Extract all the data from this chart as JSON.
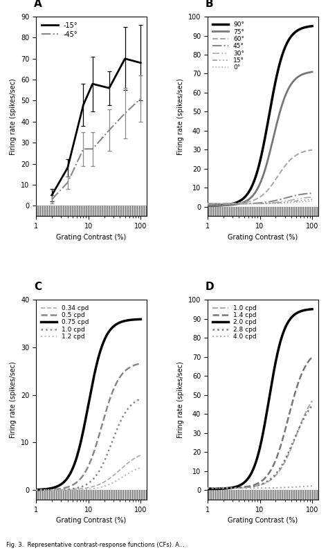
{
  "panel_A": {
    "label": "A",
    "ylabel": "Firing rate (spikes/sec)",
    "xlabel": "Grating Contrast (%)",
    "ylim": [
      -5,
      90
    ],
    "yticks": [
      0,
      10,
      20,
      30,
      40,
      50,
      60,
      70,
      80,
      90
    ],
    "series": [
      {
        "label": "-15°",
        "color": "#000000",
        "linestyle": "-",
        "linewidth": 2.0,
        "x": [
          2,
          4,
          8,
          12,
          25,
          50,
          100
        ],
        "y": [
          5,
          18,
          48,
          58,
          56,
          70,
          68
        ],
        "yerr": [
          3,
          4,
          10,
          13,
          8,
          15,
          18
        ]
      },
      {
        "label": "-45°",
        "color": "#888888",
        "linestyle": "-.",
        "linewidth": 1.5,
        "x": [
          2,
          4,
          8,
          12,
          25,
          50,
          100
        ],
        "y": [
          3,
          11,
          27,
          27,
          36,
          44,
          51
        ],
        "yerr": [
          2,
          3,
          8,
          8,
          10,
          12,
          11
        ]
      }
    ]
  },
  "panel_B": {
    "label": "B",
    "ylabel": "Firing rate (spikes/sec)",
    "xlabel": "Grating Contrast (%)",
    "ylim": [
      -5,
      100
    ],
    "yticks": [
      0,
      10,
      20,
      30,
      40,
      50,
      60,
      70,
      80,
      90,
      100
    ],
    "curves": [
      {
        "label": "90°",
        "Rmax": 95,
        "c50": 15,
        "n": 2.8,
        "baseline": 0.5,
        "color": "#000000",
        "ls": "-",
        "lw": 2.5
      },
      {
        "label": "75°",
        "Rmax": 71,
        "c50": 18,
        "n": 2.8,
        "baseline": 0.5,
        "color": "#777777",
        "ls": "-",
        "lw": 2.0
      },
      {
        "label": "60°",
        "Rmax": 29,
        "c50": 22,
        "n": 2.5,
        "baseline": 1.5,
        "color": "#aaaaaa",
        "ls": "--",
        "lw": 1.5
      },
      {
        "label": "45°",
        "Rmax": 6,
        "c50": 30,
        "n": 2.2,
        "baseline": 1.5,
        "color": "#888888",
        "ls": "-.",
        "lw": 1.5
      },
      {
        "label": "30°",
        "Rmax": 4,
        "c50": 40,
        "n": 2.2,
        "baseline": 1.5,
        "color": "#aaaaaa",
        "ls": "dashdotdotted",
        "lw": 1.2
      },
      {
        "label": "15°",
        "Rmax": 3,
        "c50": 50,
        "n": 2.0,
        "baseline": 1.5,
        "color": "#999999",
        "ls": "dashdotdotdotted",
        "lw": 1.2
      },
      {
        "label": "0°",
        "Rmax": 2,
        "c50": 60,
        "n": 2.0,
        "baseline": 1.5,
        "color": "#aaaaaa",
        "ls": ":",
        "lw": 1.2
      }
    ]
  },
  "panel_C": {
    "label": "C",
    "ylabel": "Firing rate (spikes/sec)",
    "xlabel": "Grating Contrast (%)",
    "ylim": [
      -2,
      40
    ],
    "yticks": [
      0,
      10,
      20,
      30,
      40
    ],
    "curves": [
      {
        "label": "0.34 cpd",
        "Rmax": 8.5,
        "c50": 40,
        "n": 2.0,
        "baseline": 0,
        "color": "#aaaaaa",
        "ls": "--",
        "lw": 1.2
      },
      {
        "label": "0.5 cpd",
        "Rmax": 27,
        "c50": 18,
        "n": 2.5,
        "baseline": 0,
        "color": "#888888",
        "ls": "--",
        "lw": 1.8
      },
      {
        "label": "0.75 cpd",
        "Rmax": 36,
        "c50": 10,
        "n": 2.8,
        "baseline": 0,
        "color": "#000000",
        "ls": "-",
        "lw": 2.5
      },
      {
        "label": "1.0 cpd",
        "Rmax": 20,
        "c50": 28,
        "n": 2.5,
        "baseline": 0,
        "color": "#888888",
        "ls": ":",
        "lw": 1.8
      },
      {
        "label": "1.2 cpd",
        "Rmax": 5.5,
        "c50": 45,
        "n": 2.2,
        "baseline": 0,
        "color": "#bbbbbb",
        "ls": ":",
        "lw": 1.5
      }
    ],
    "xrange": [
      1,
      100
    ]
  },
  "panel_D": {
    "label": "D",
    "ylabel": "Firing rate (spikes/sec)",
    "xlabel": "Grating Contrast (%)",
    "ylim": [
      -5,
      100
    ],
    "yticks": [
      0,
      10,
      20,
      30,
      40,
      50,
      60,
      70,
      80,
      90,
      100
    ],
    "curves": [
      {
        "label": "1.0 cpd",
        "Rmax": 56,
        "c50": 50,
        "n": 2.2,
        "baseline": 1,
        "color": "#aaaaaa",
        "ls": "--",
        "lw": 1.5
      },
      {
        "label": "1.4 cpd",
        "Rmax": 74,
        "c50": 35,
        "n": 2.5,
        "baseline": 1,
        "color": "#777777",
        "ls": "--",
        "lw": 1.8
      },
      {
        "label": "2.0 cpd",
        "Rmax": 95,
        "c50": 15,
        "n": 3.0,
        "baseline": 0.5,
        "color": "#000000",
        "ls": "-",
        "lw": 2.5
      },
      {
        "label": "2.8 cpd",
        "Rmax": 51,
        "c50": 45,
        "n": 2.2,
        "baseline": 1,
        "color": "#777777",
        "ls": ":",
        "lw": 1.8
      },
      {
        "label": "4.0 cpd",
        "Rmax": 1.5,
        "c50": 60,
        "n": 2.0,
        "baseline": 1,
        "color": "#aaaaaa",
        "ls": ":",
        "lw": 1.5
      }
    ]
  },
  "caption": "Fig. 3.  Representative contrast-response functions (CFs). A..."
}
